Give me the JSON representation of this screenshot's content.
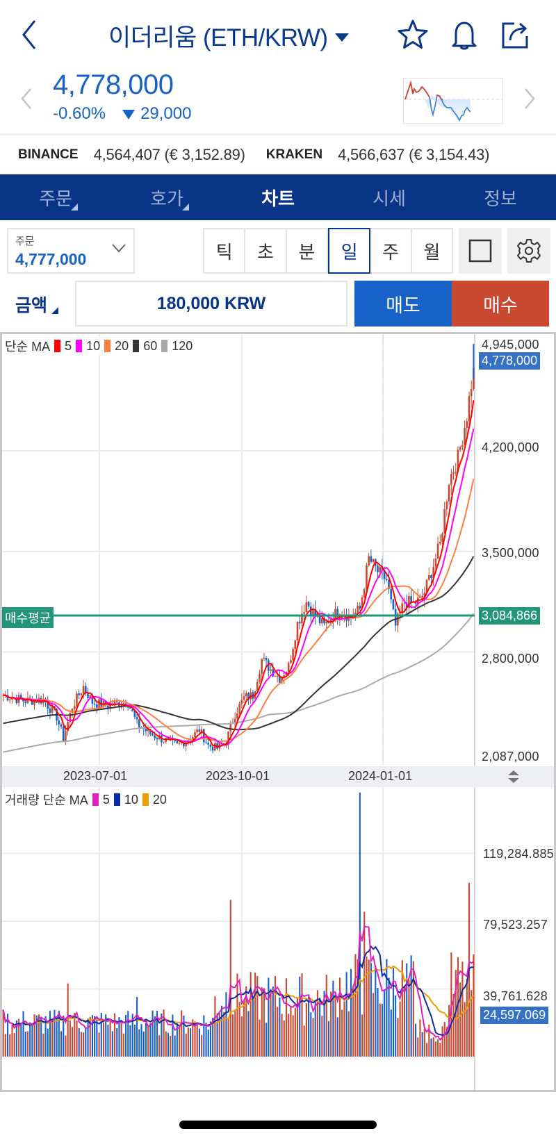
{
  "header": {
    "title": "이더리움 (ETH/KRW)",
    "icons": [
      "back-arrow-icon",
      "star-icon",
      "bell-icon",
      "share-icon"
    ]
  },
  "price": {
    "current": "4,778,000",
    "change_pct": "-0.60%",
    "change_abs": "29,000",
    "color": "#1761c7"
  },
  "exchanges": [
    {
      "name": "BINANCE",
      "value": "4,564,407 (€ 3,152.89)"
    },
    {
      "name": "KRAKEN",
      "value": "4,566,637 (€ 3,154.43)"
    }
  ],
  "tabs": [
    {
      "label": "주문",
      "active": false,
      "has_corner": true
    },
    {
      "label": "호가",
      "active": false,
      "has_corner": true
    },
    {
      "label": "차트",
      "active": true,
      "has_corner": false
    },
    {
      "label": "시세",
      "active": false,
      "has_corner": false
    },
    {
      "label": "정보",
      "active": false,
      "has_corner": false
    }
  ],
  "order_select": {
    "label": "주문",
    "value": "4,777,000"
  },
  "periods": [
    {
      "label": "틱",
      "active": false
    },
    {
      "label": "초",
      "active": false
    },
    {
      "label": "분",
      "active": false
    },
    {
      "label": "일",
      "active": true
    },
    {
      "label": "주",
      "active": false
    },
    {
      "label": "월",
      "active": false
    }
  ],
  "amount": {
    "label": "금액",
    "value": "180,000 KRW"
  },
  "actions": {
    "sell": "매도",
    "buy": "매수",
    "sell_color": "#1761c7",
    "buy_color": "#c8492f"
  },
  "chart_data": [
    {
      "type": "candlestick",
      "title": "단순 MA",
      "legend": [
        {
          "label": "5",
          "color": "#ff0000"
        },
        {
          "label": "10",
          "color": "#ff00ff"
        },
        {
          "label": "20",
          "color": "#ff7f3f"
        },
        {
          "label": "60",
          "color": "#333333"
        },
        {
          "label": "120",
          "color": "#aaaaaa"
        }
      ],
      "y_ticks": [
        "4,945,000",
        "4,200,000",
        "3,500,000",
        "2,800,000",
        "2,087,000"
      ],
      "y_tick_values": [
        4945000,
        4200000,
        3500000,
        2800000,
        2087000
      ],
      "current_price_tag": "4,778,000",
      "avg_buy_label": "매수평균",
      "avg_buy_value": "3,084,866",
      "avg_buy_color": "#239579",
      "x_ticks": [
        "2023-07-01",
        "2023-10-01",
        "2024-01-01"
      ],
      "ylim": [
        2087000,
        4945000
      ],
      "close_path_knots": [
        [
          0,
          2500000
        ],
        [
          10,
          2460000
        ],
        [
          18,
          2470000
        ],
        [
          24,
          2350000
        ],
        [
          27,
          2200000
        ],
        [
          31,
          2420000
        ],
        [
          36,
          2560000
        ],
        [
          40,
          2450000
        ],
        [
          46,
          2430000
        ],
        [
          52,
          2440000
        ],
        [
          56,
          2450000
        ],
        [
          60,
          2300000
        ],
        [
          66,
          2230000
        ],
        [
          72,
          2190000
        ],
        [
          78,
          2150000
        ],
        [
          84,
          2200000
        ],
        [
          88,
          2260000
        ],
        [
          92,
          2150000
        ],
        [
          96,
          2130000
        ],
        [
          100,
          2180000
        ],
        [
          104,
          2370000
        ],
        [
          108,
          2480000
        ],
        [
          112,
          2500000
        ],
        [
          116,
          2750000
        ],
        [
          120,
          2680000
        ],
        [
          124,
          2620000
        ],
        [
          128,
          2700000
        ],
        [
          132,
          3000000
        ],
        [
          136,
          3150000
        ],
        [
          140,
          3050000
        ],
        [
          144,
          2980000
        ],
        [
          148,
          3060000
        ],
        [
          152,
          3080000
        ],
        [
          156,
          3040000
        ],
        [
          160,
          3100000
        ],
        [
          164,
          3450000
        ],
        [
          168,
          3360000
        ],
        [
          172,
          3300000
        ],
        [
          176,
          2980000
        ],
        [
          180,
          3150000
        ],
        [
          184,
          3140000
        ],
        [
          188,
          3170000
        ],
        [
          192,
          3360000
        ],
        [
          196,
          3550000
        ],
        [
          200,
          4000000
        ],
        [
          204,
          4150000
        ],
        [
          208,
          4450000
        ],
        [
          211,
          4778000
        ]
      ],
      "ma_colors": {
        "ma5": "#ff0000",
        "ma10": "#ff00ff",
        "ma20": "#ff7f3f",
        "ma60": "#333333",
        "ma120": "#aaaaaa"
      }
    },
    {
      "type": "bar",
      "title": "거래량 단순 MA",
      "legend": [
        {
          "label": "5",
          "color": "#e020c0"
        },
        {
          "label": "10",
          "color": "#0a2aa8"
        },
        {
          "label": "20",
          "color": "#ef9a00"
        }
      ],
      "y_ticks": [
        "119,284.885",
        "79,523.257",
        "39,761.628"
      ],
      "y_tick_values": [
        119284.885,
        79523.257,
        39761.628
      ],
      "current_volume_tag": "24,597.069",
      "ylim": [
        0,
        159000
      ],
      "spikes": [
        [
          29,
          43000
        ],
        [
          60,
          35000
        ],
        [
          102,
          92000
        ],
        [
          160,
          155000
        ],
        [
          162,
          85000
        ],
        [
          209,
          102000
        ]
      ]
    }
  ],
  "colors": {
    "up": "#c8492f",
    "down": "#1761c7",
    "tab_bg": "#0a3586",
    "tag_blue": "#3572c6"
  }
}
